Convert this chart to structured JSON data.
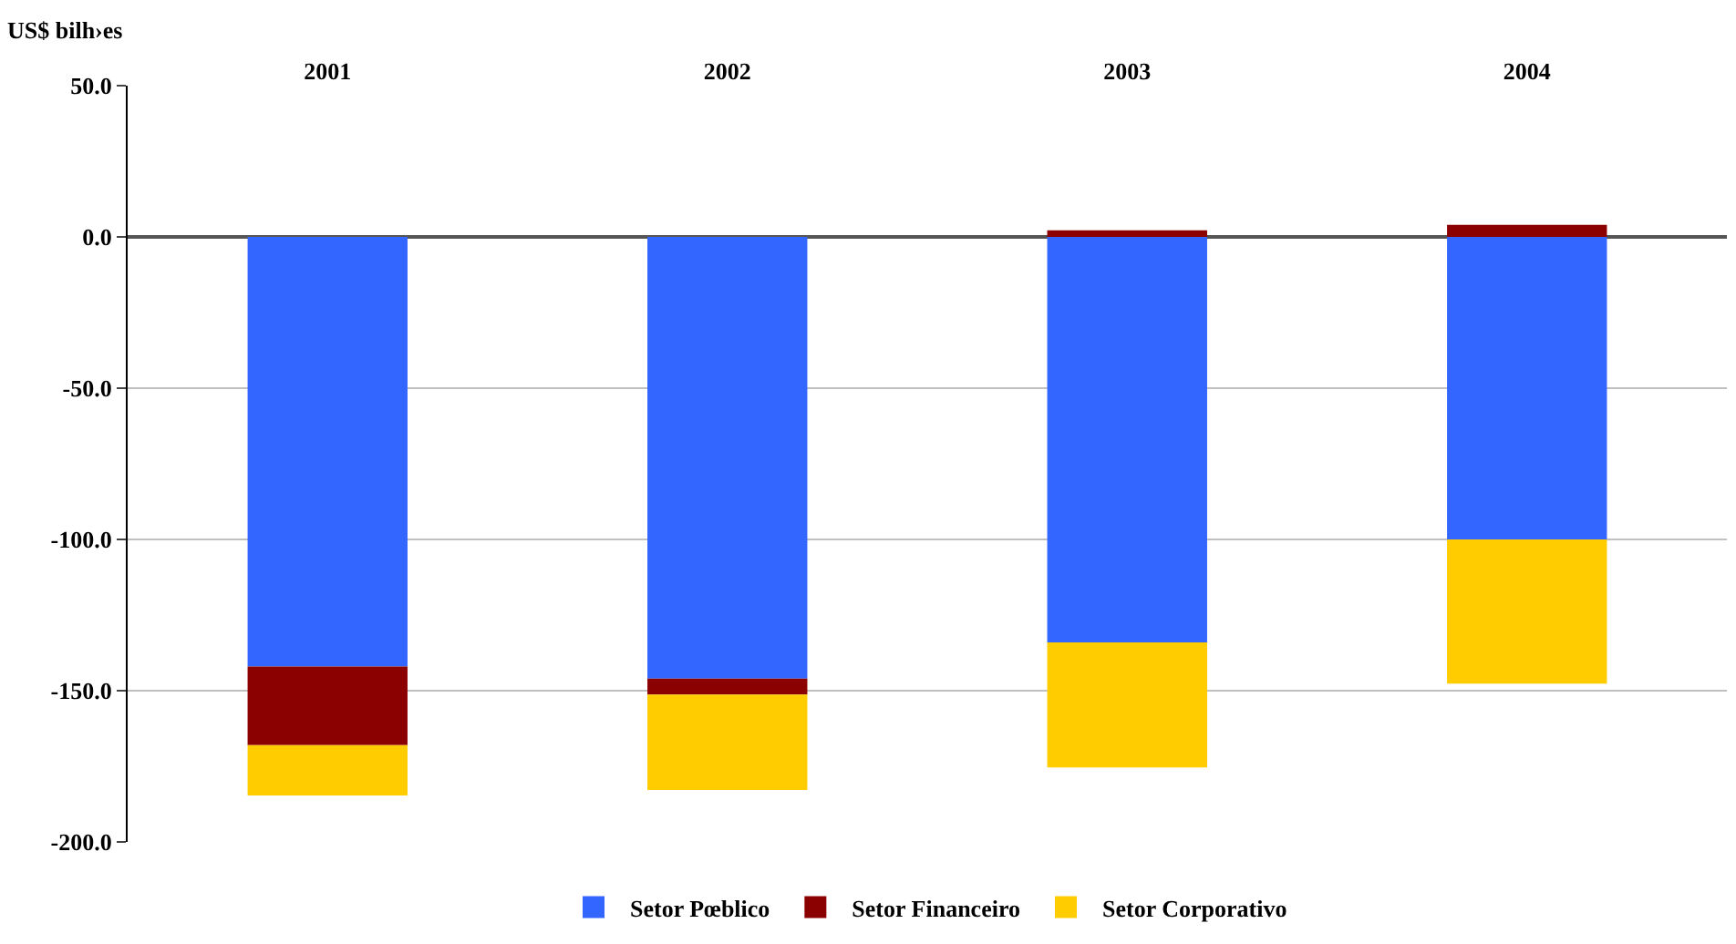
{
  "chart_data": {
    "type": "bar",
    "stacked": true,
    "ylabel": "US$ bilh›es",
    "categories": [
      "2001",
      "2002",
      "2003",
      "2004"
    ],
    "series": [
      {
        "name": "Setor Pœblico",
        "color": "#3366ff",
        "values": [
          -142,
          -146,
          -134,
          -100
        ]
      },
      {
        "name": "Setor Financeiro",
        "color": "#8b0000",
        "values": [
          -26,
          -5.3,
          2.2,
          4
        ]
      },
      {
        "name": "Setor Corporativo",
        "color": "#ffcc00",
        "values": [
          -16.6,
          -31.5,
          -41.4,
          -47.7
        ]
      }
    ],
    "ylim": [
      -200,
      50
    ],
    "yticks": [
      {
        "value": 50,
        "label": "50.0"
      },
      {
        "value": 0,
        "label": "0.0"
      },
      {
        "value": -50,
        "label": "-50.0"
      },
      {
        "value": -100,
        "label": "-100.0"
      },
      {
        "value": -150,
        "label": "-150.0"
      },
      {
        "value": -200,
        "label": "-200.0"
      }
    ],
    "grid": "y",
    "legend": "bottom"
  }
}
